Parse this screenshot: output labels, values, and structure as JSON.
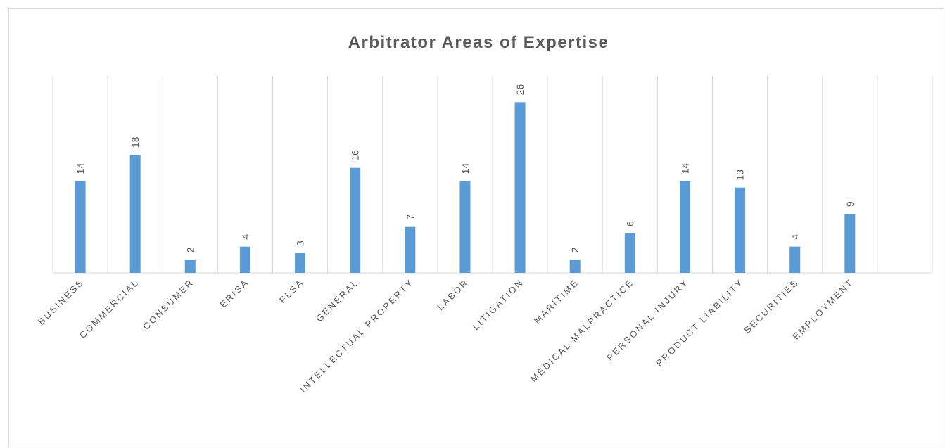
{
  "chart_data": {
    "type": "bar",
    "title": "Arbitrator Areas of Expertise",
    "categories": [
      "BUSINESS",
      "COMMERCIAL",
      "CONSUMER",
      "ERISA",
      "FLSA",
      "GENERAL",
      "INTELLECTUAL PROPERTY",
      "LABOR",
      "LITIGATION",
      "MARITIME",
      "MEDICAL MALPRACTICE",
      "PERSONAL INJURY",
      "PRODUCT LIABILITY",
      "SECURITIES",
      "EMPLOYMENT",
      null
    ],
    "values": [
      14,
      18,
      2,
      4,
      3,
      16,
      7,
      14,
      26,
      2,
      6,
      14,
      13,
      4,
      9,
      null
    ],
    "color": "#5b9bd5",
    "ylim": [
      0,
      30
    ],
    "grid": true
  }
}
